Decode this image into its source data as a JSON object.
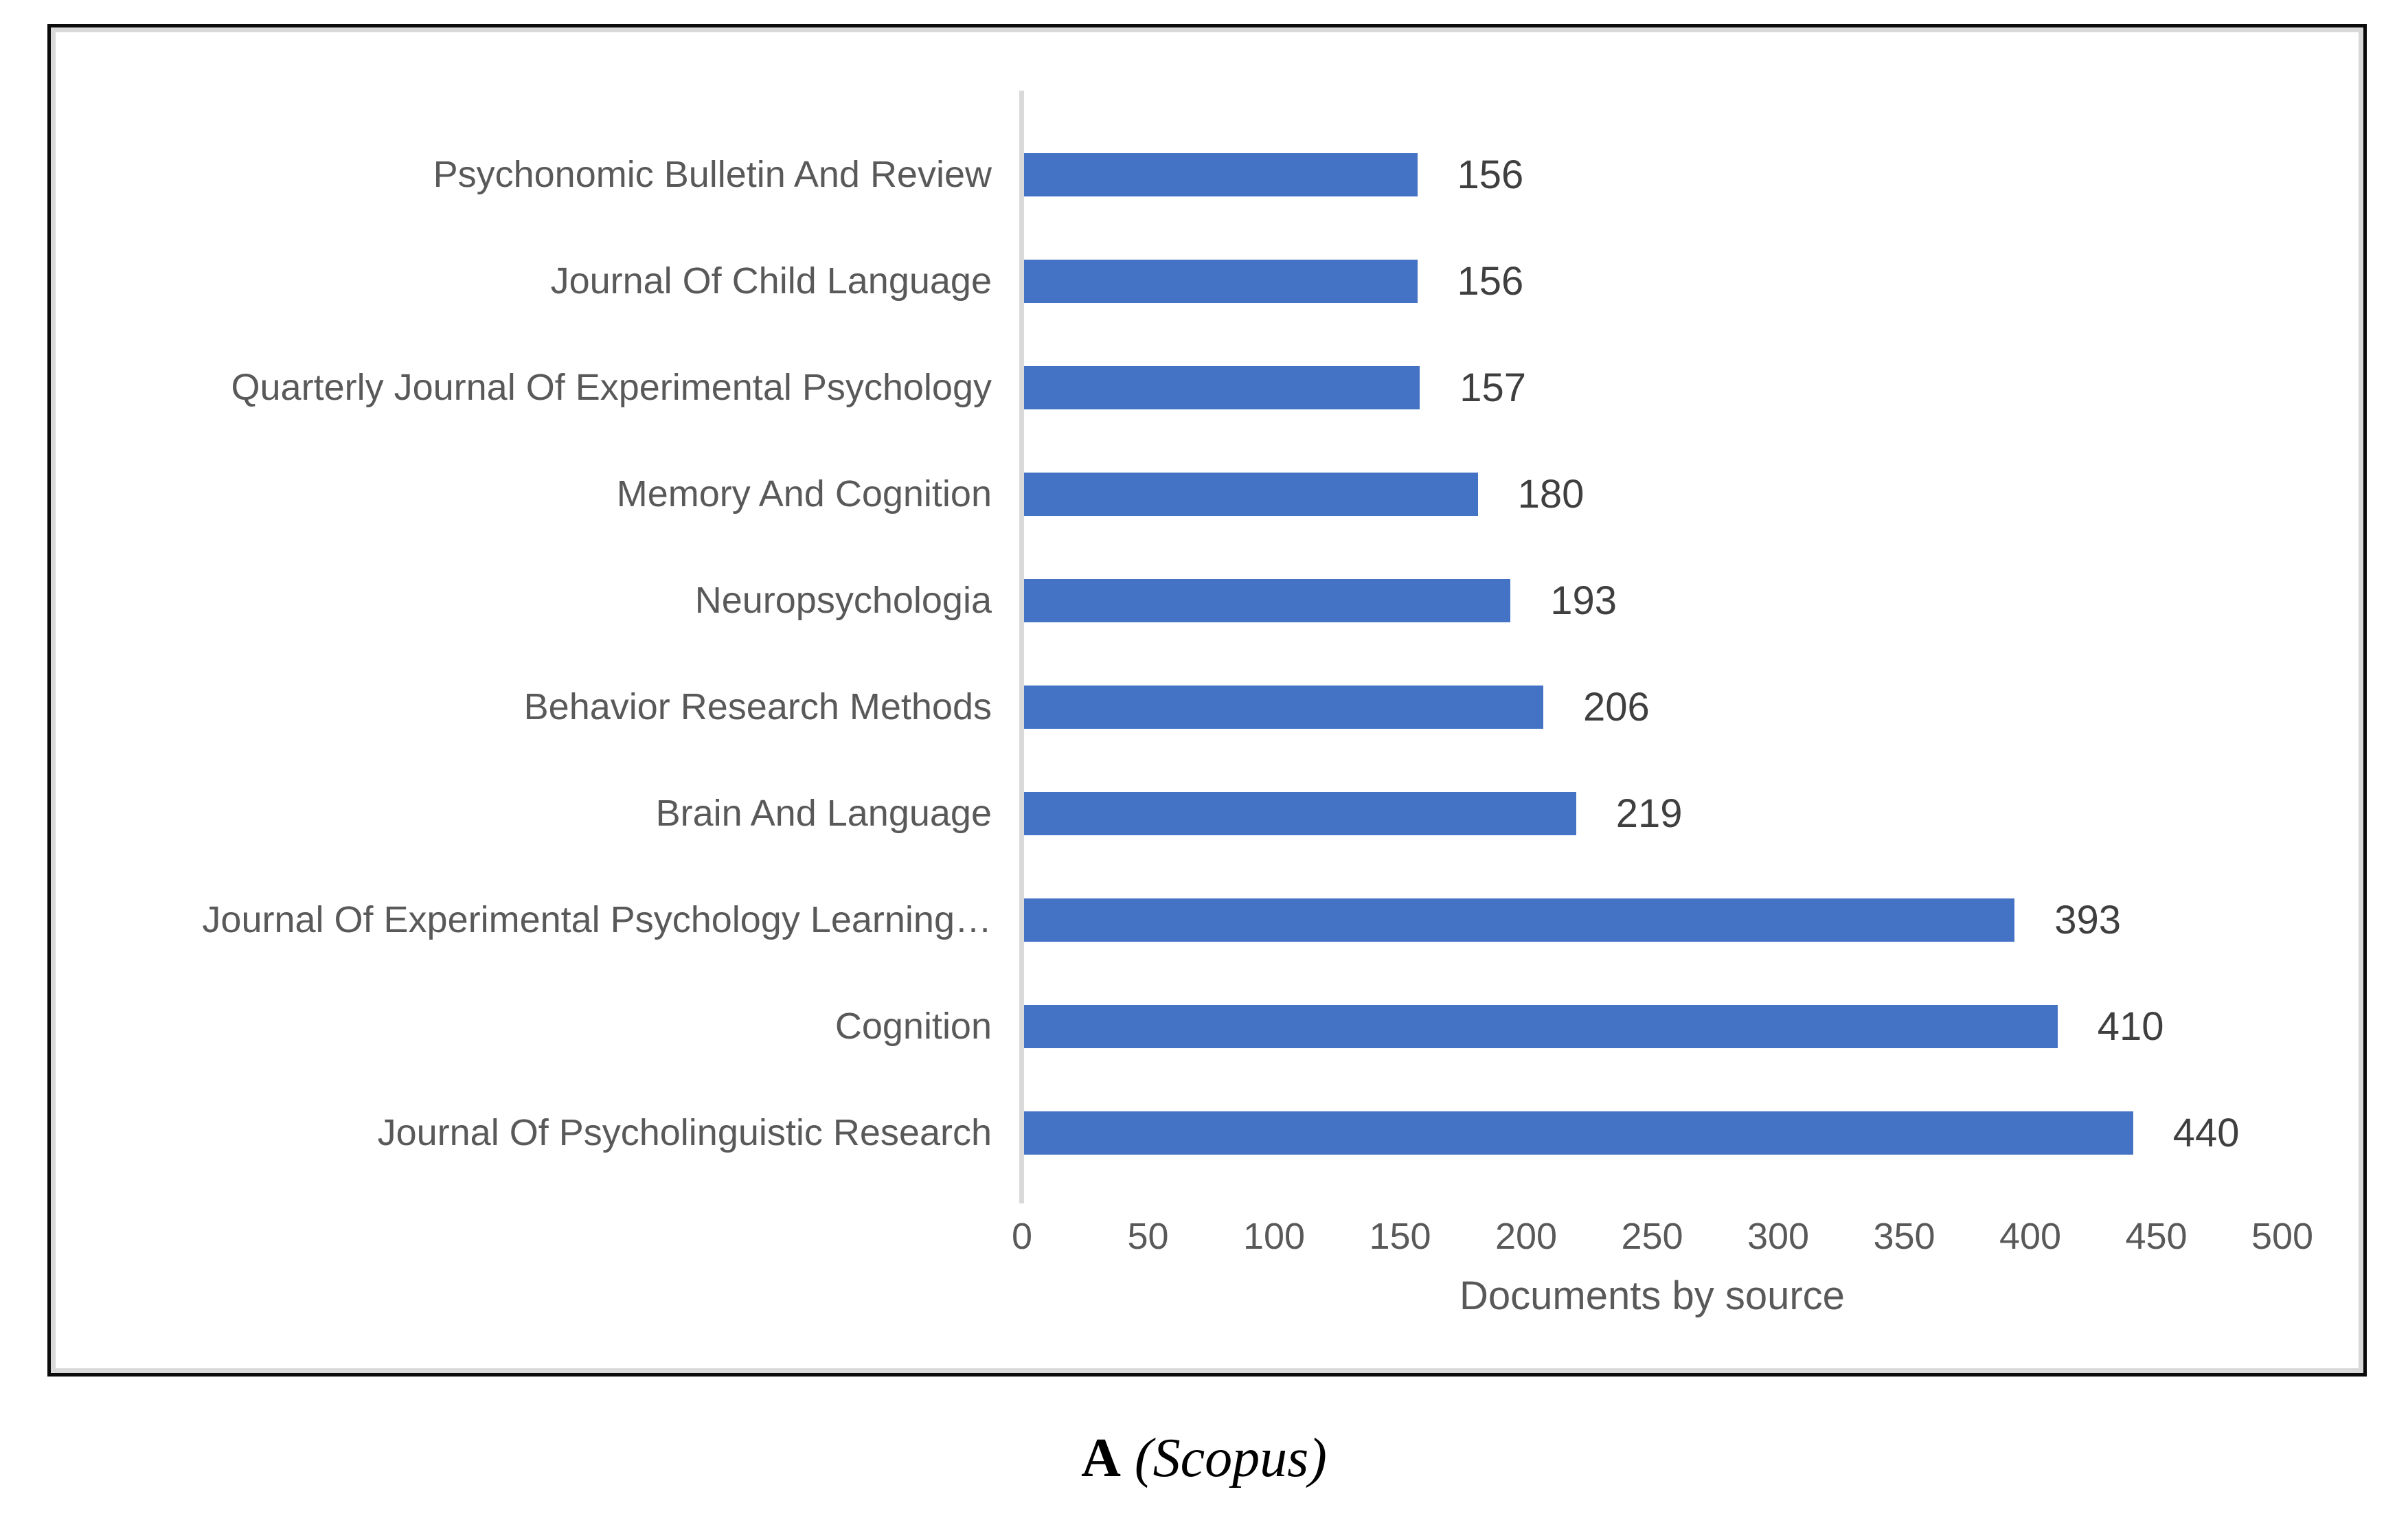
{
  "chart_data": {
    "type": "bar",
    "orientation": "horizontal",
    "title": "",
    "xlabel": "Documents by source",
    "ylabel": "",
    "categories": [
      "Psychonomic Bulletin And Review",
      "Journal Of Child Language",
      "Quarterly Journal Of Experimental Psychology",
      "Memory And Cognition",
      "Neuropsychologia",
      "Behavior Research Methods",
      "Brain And Language",
      "Journal Of Experimental Psychology Learning…",
      "Cognition",
      "Journal Of Psycholinguistic Research"
    ],
    "values": [
      156,
      156,
      157,
      180,
      193,
      206,
      219,
      393,
      410,
      440
    ],
    "xticks": [
      0,
      50,
      100,
      150,
      200,
      250,
      300,
      350,
      400,
      450,
      500
    ],
    "xlim": [
      0,
      500
    ],
    "grid": false,
    "legend": false,
    "data_labels_shown": true,
    "bar_color": "#4472c4"
  },
  "caption": {
    "panel": "A",
    "source": "(Scopus)"
  },
  "colors": {
    "bar": "#4472c4",
    "axis_line": "#d9d9d9",
    "tick_text": "#595959",
    "value_text": "#3f3f3f",
    "outer_border": "#0b0b0b",
    "chart_border": "#d9d9d9"
  }
}
